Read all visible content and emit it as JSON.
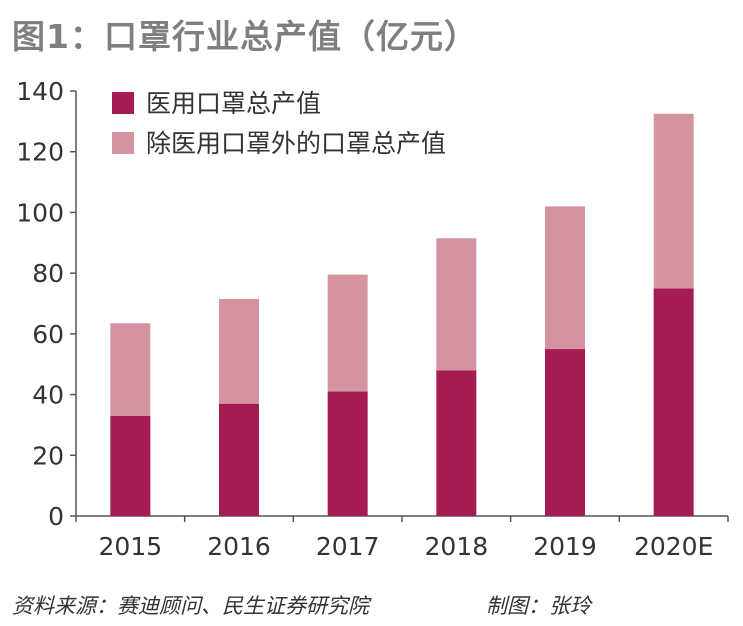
{
  "title": "图1：口罩行业总产值（亿元）",
  "source": "资料来源：赛迪顾问、民生证券研究院",
  "credit": "制图：张玲",
  "colors": {
    "medical": "#a51c52",
    "non_medical": "#d3939f",
    "axis": "#555555"
  },
  "chart_data": {
    "type": "bar",
    "stacked": true,
    "categories": [
      "2015",
      "2016",
      "2017",
      "2018",
      "2019",
      "2020E"
    ],
    "series": [
      {
        "name": "医用口罩总产值",
        "values": [
          33,
          37,
          41,
          48,
          55,
          75
        ]
      },
      {
        "name": "除医用口罩外的口罩总产值",
        "values": [
          30.5,
          34.5,
          38.5,
          43.5,
          47,
          57.5
        ]
      }
    ],
    "totals": [
      63.5,
      71.5,
      79.5,
      91.5,
      102,
      132.5
    ],
    "ylim": [
      0,
      140
    ],
    "yticks": [
      0,
      20,
      40,
      60,
      80,
      100,
      120,
      140
    ],
    "legend_position": "top-left",
    "grid": false
  }
}
